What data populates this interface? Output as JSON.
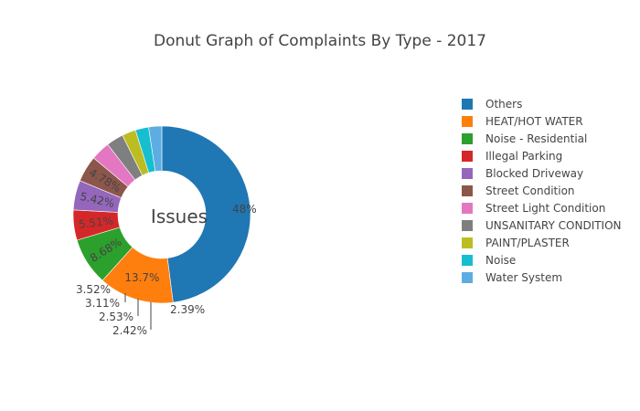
{
  "chart_data": {
    "type": "pie",
    "title": "Donut Graph of Complaints By Type - 2017",
    "hole_label": "Issues",
    "legend_position": "right",
    "slices": [
      {
        "label": "Others",
        "value": 48.0,
        "text": "48%",
        "color": "#1f77b4"
      },
      {
        "label": "HEAT/HOT WATER",
        "value": 13.7,
        "text": "13.7%",
        "color": "#ff7f0e"
      },
      {
        "label": "Noise - Residential",
        "value": 8.68,
        "text": "8.68%",
        "color": "#2ca02c"
      },
      {
        "label": "Illegal Parking",
        "value": 5.51,
        "text": "5.51%",
        "color": "#d62728"
      },
      {
        "label": "Blocked Driveway",
        "value": 5.42,
        "text": "5.42%",
        "color": "#9467bd"
      },
      {
        "label": "Street Condition",
        "value": 4.78,
        "text": "4.78%",
        "color": "#8c564b"
      },
      {
        "label": "Street Light Condition",
        "value": 3.52,
        "text": "3.52%",
        "color": "#e377c2"
      },
      {
        "label": "UNSANITARY CONDITION",
        "value": 3.11,
        "text": "3.11%",
        "color": "#7f7f7f"
      },
      {
        "label": "PAINT/PLASTER",
        "value": 2.53,
        "text": "2.53%",
        "color": "#bcbd22"
      },
      {
        "label": "Noise",
        "value": 2.42,
        "text": "2.42%",
        "color": "#17becf"
      },
      {
        "label": "Water System",
        "value": 2.39,
        "text": "2.39%",
        "color": "#5dade2"
      }
    ]
  }
}
